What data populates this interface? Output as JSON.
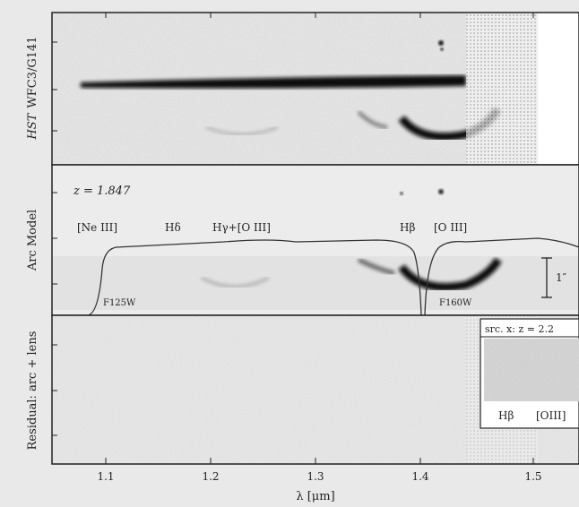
{
  "panels": {
    "top": {
      "ylabel_italic": "HST",
      "ylabel": "WFC3/G141"
    },
    "middle": {
      "ylabel": "Arc Model",
      "redshift": "z = 1.847",
      "lines": [
        "[Ne III]",
        "Hδ",
        "Hγ+[O III]",
        "Hβ",
        "[O III]"
      ],
      "filters": [
        "F125W",
        "F160W"
      ],
      "scalebar": "1″"
    },
    "bottom": {
      "ylabel": "Residual: arc + lens",
      "inset_title": "src. x: z = 2.2",
      "inset_lines": [
        "Hβ",
        "[OIII]"
      ]
    }
  },
  "xaxis": {
    "label": "λ [μm]",
    "ticks": [
      "1.1",
      "1.2",
      "1.3",
      "1.4",
      "1.5"
    ]
  },
  "colors": {
    "frame": "#222222",
    "panel_bg": "#ebebeb",
    "trace": "#111111"
  }
}
